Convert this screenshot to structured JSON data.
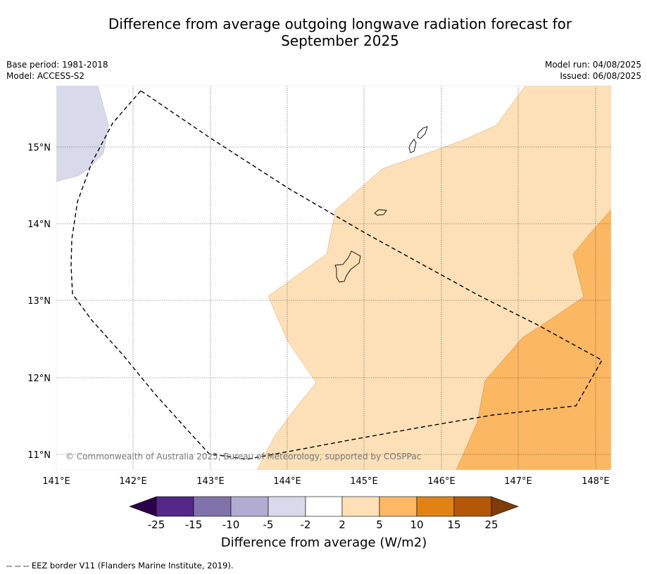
{
  "title_line1": "Difference from average outgoing longwave radiation forecast for",
  "title_line2": "September 2025",
  "meta_left": {
    "base_period": "Base period: 1981-2018",
    "model": "Model: ACCESS-S2"
  },
  "meta_right": {
    "model_run": "Model run: 04/08/2025",
    "issued": "Issued: 06/08/2025"
  },
  "map": {
    "lon_labels": [
      "141°E",
      "142°E",
      "143°E",
      "144°E",
      "145°E",
      "146°E",
      "147°E",
      "148°E"
    ],
    "lat_labels": [
      "15°N",
      "14°N",
      "13°N",
      "12°N",
      "11°N"
    ],
    "copyright": "© Commonwealth of Australia 2025, Bureau of Meteorology, supported by COSPPac"
  },
  "colorbar": {
    "ticks": [
      "-25",
      "-15",
      "-10",
      "-5",
      "-2",
      "2",
      "5",
      "10",
      "15",
      "25"
    ],
    "colors": [
      "#2d004b",
      "#542788",
      "#8073ac",
      "#b2abd2",
      "#d8daeb",
      "#ffffff",
      "#fee0b6",
      "#fdb863",
      "#e08214",
      "#b35806",
      "#7f3b08"
    ],
    "label": "Difference from average (W/m2)"
  },
  "footnote": "--  --  -- EEZ border V11 (Flanders Marine Institute, 2019)."
}
